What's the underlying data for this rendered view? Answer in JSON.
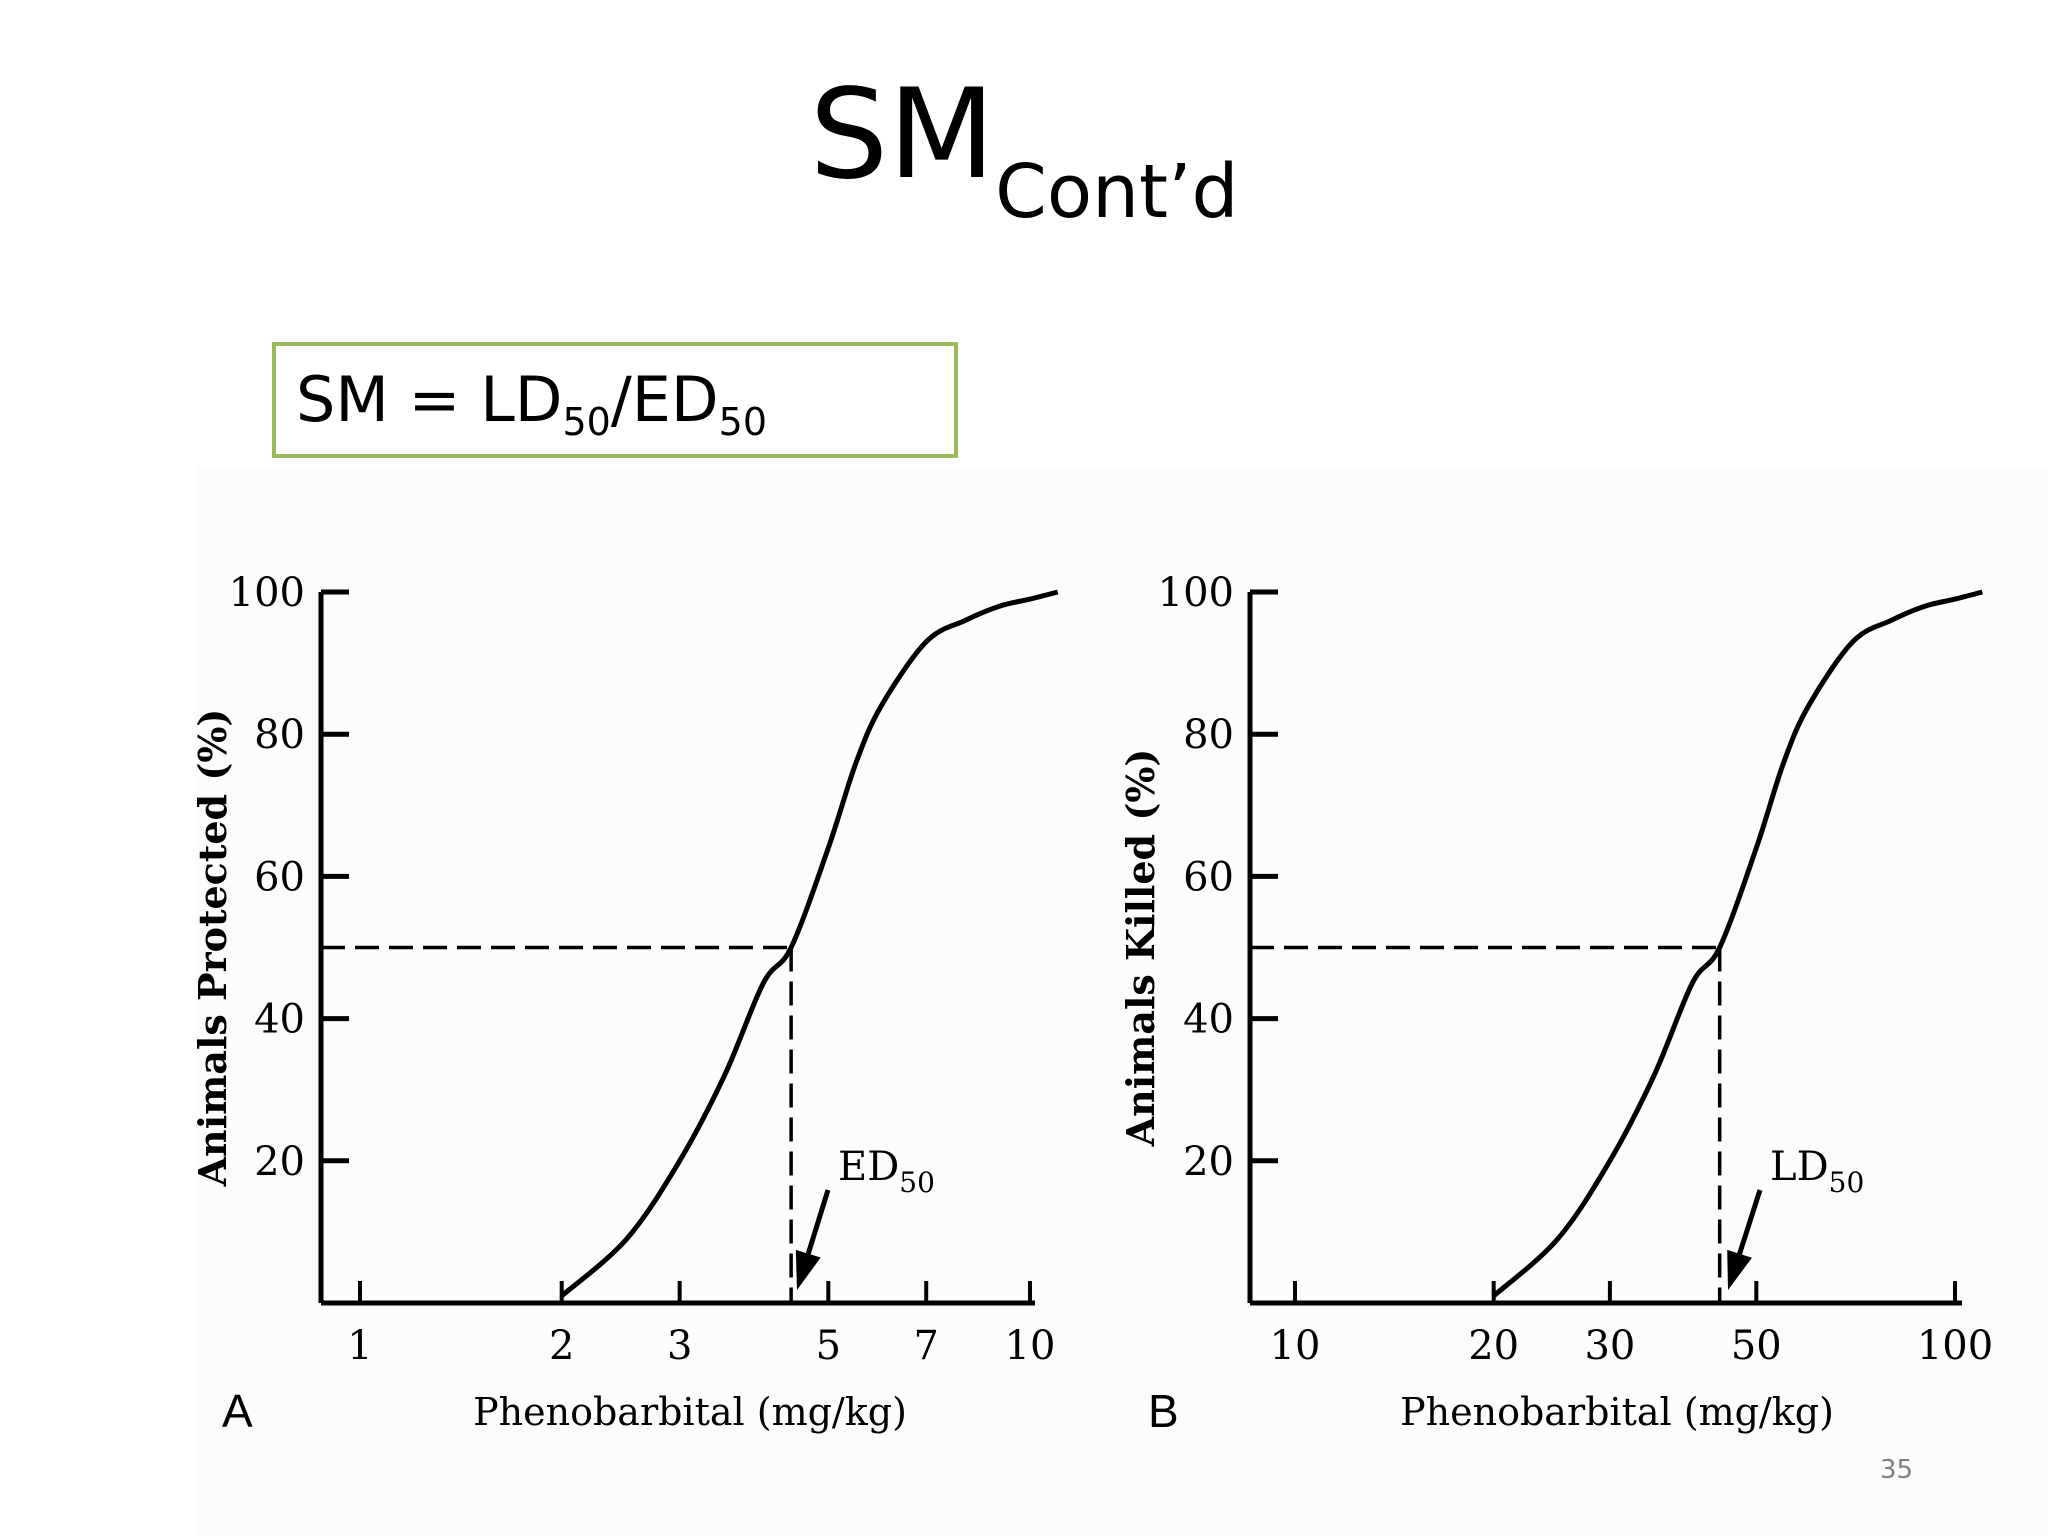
{
  "slide": {
    "title_main": "SM",
    "title_sub": "Cont’d",
    "formula": {
      "lhs": "SM = LD",
      "sub1": "50",
      "mid": "/ED",
      "sub2": "50"
    },
    "page_number": "35",
    "box_color": "#9bbb59"
  },
  "chart_data": [
    {
      "type": "line",
      "panel_label": "A",
      "xlabel": "Phenobarbital (mg/kg)",
      "ylabel": "Animals Protected (%)",
      "xscale": "log",
      "xticks": [
        1,
        2,
        3,
        5,
        7,
        10
      ],
      "xtick_labels": [
        "1",
        "2",
        "3",
        "5",
        "7",
        "10"
      ],
      "yticks": [
        20,
        40,
        60,
        80,
        100
      ],
      "ytick_labels": [
        "20",
        "40",
        "60",
        "80",
        "100"
      ],
      "xlim": [
        0.9,
        10.5
      ],
      "ylim": [
        0,
        100
      ],
      "grid": false,
      "series": [
        {
          "x": [
            2.0,
            2.5,
            3.0,
            3.5,
            4.0,
            4.4,
            5.0,
            5.5,
            6.0,
            7.0,
            8.0,
            9.0,
            10.0,
            11.0
          ],
          "y": [
            1,
            9,
            20,
            32,
            45,
            50,
            64,
            76,
            84,
            93,
            96,
            98,
            99,
            100
          ]
        }
      ],
      "marker": {
        "x": 4.4,
        "y": 50,
        "label": "ED",
        "label_sub": "50"
      }
    },
    {
      "type": "line",
      "panel_label": "B",
      "xlabel": "Phenobarbital (mg/kg)",
      "ylabel": "Animals Killed (%)",
      "xscale": "log",
      "xticks": [
        10,
        20,
        30,
        50,
        100
      ],
      "xtick_labels": [
        "10",
        "20",
        "30",
        "50",
        "100"
      ],
      "yticks": [
        20,
        40,
        60,
        80,
        100
      ],
      "ytick_labels": [
        "20",
        "40",
        "60",
        "80",
        "100"
      ],
      "xlim": [
        9,
        105
      ],
      "ylim": [
        0,
        100
      ],
      "grid": false,
      "series": [
        {
          "x": [
            20,
            25,
            30,
            35,
            40,
            44,
            50,
            55,
            60,
            70,
            80,
            90,
            100,
            110
          ],
          "y": [
            1,
            9,
            20,
            32,
            45,
            50,
            64,
            76,
            84,
            93,
            96,
            98,
            99,
            100
          ]
        }
      ],
      "marker": {
        "x": 44,
        "y": 50,
        "label": "LD",
        "label_sub": "50"
      }
    }
  ]
}
